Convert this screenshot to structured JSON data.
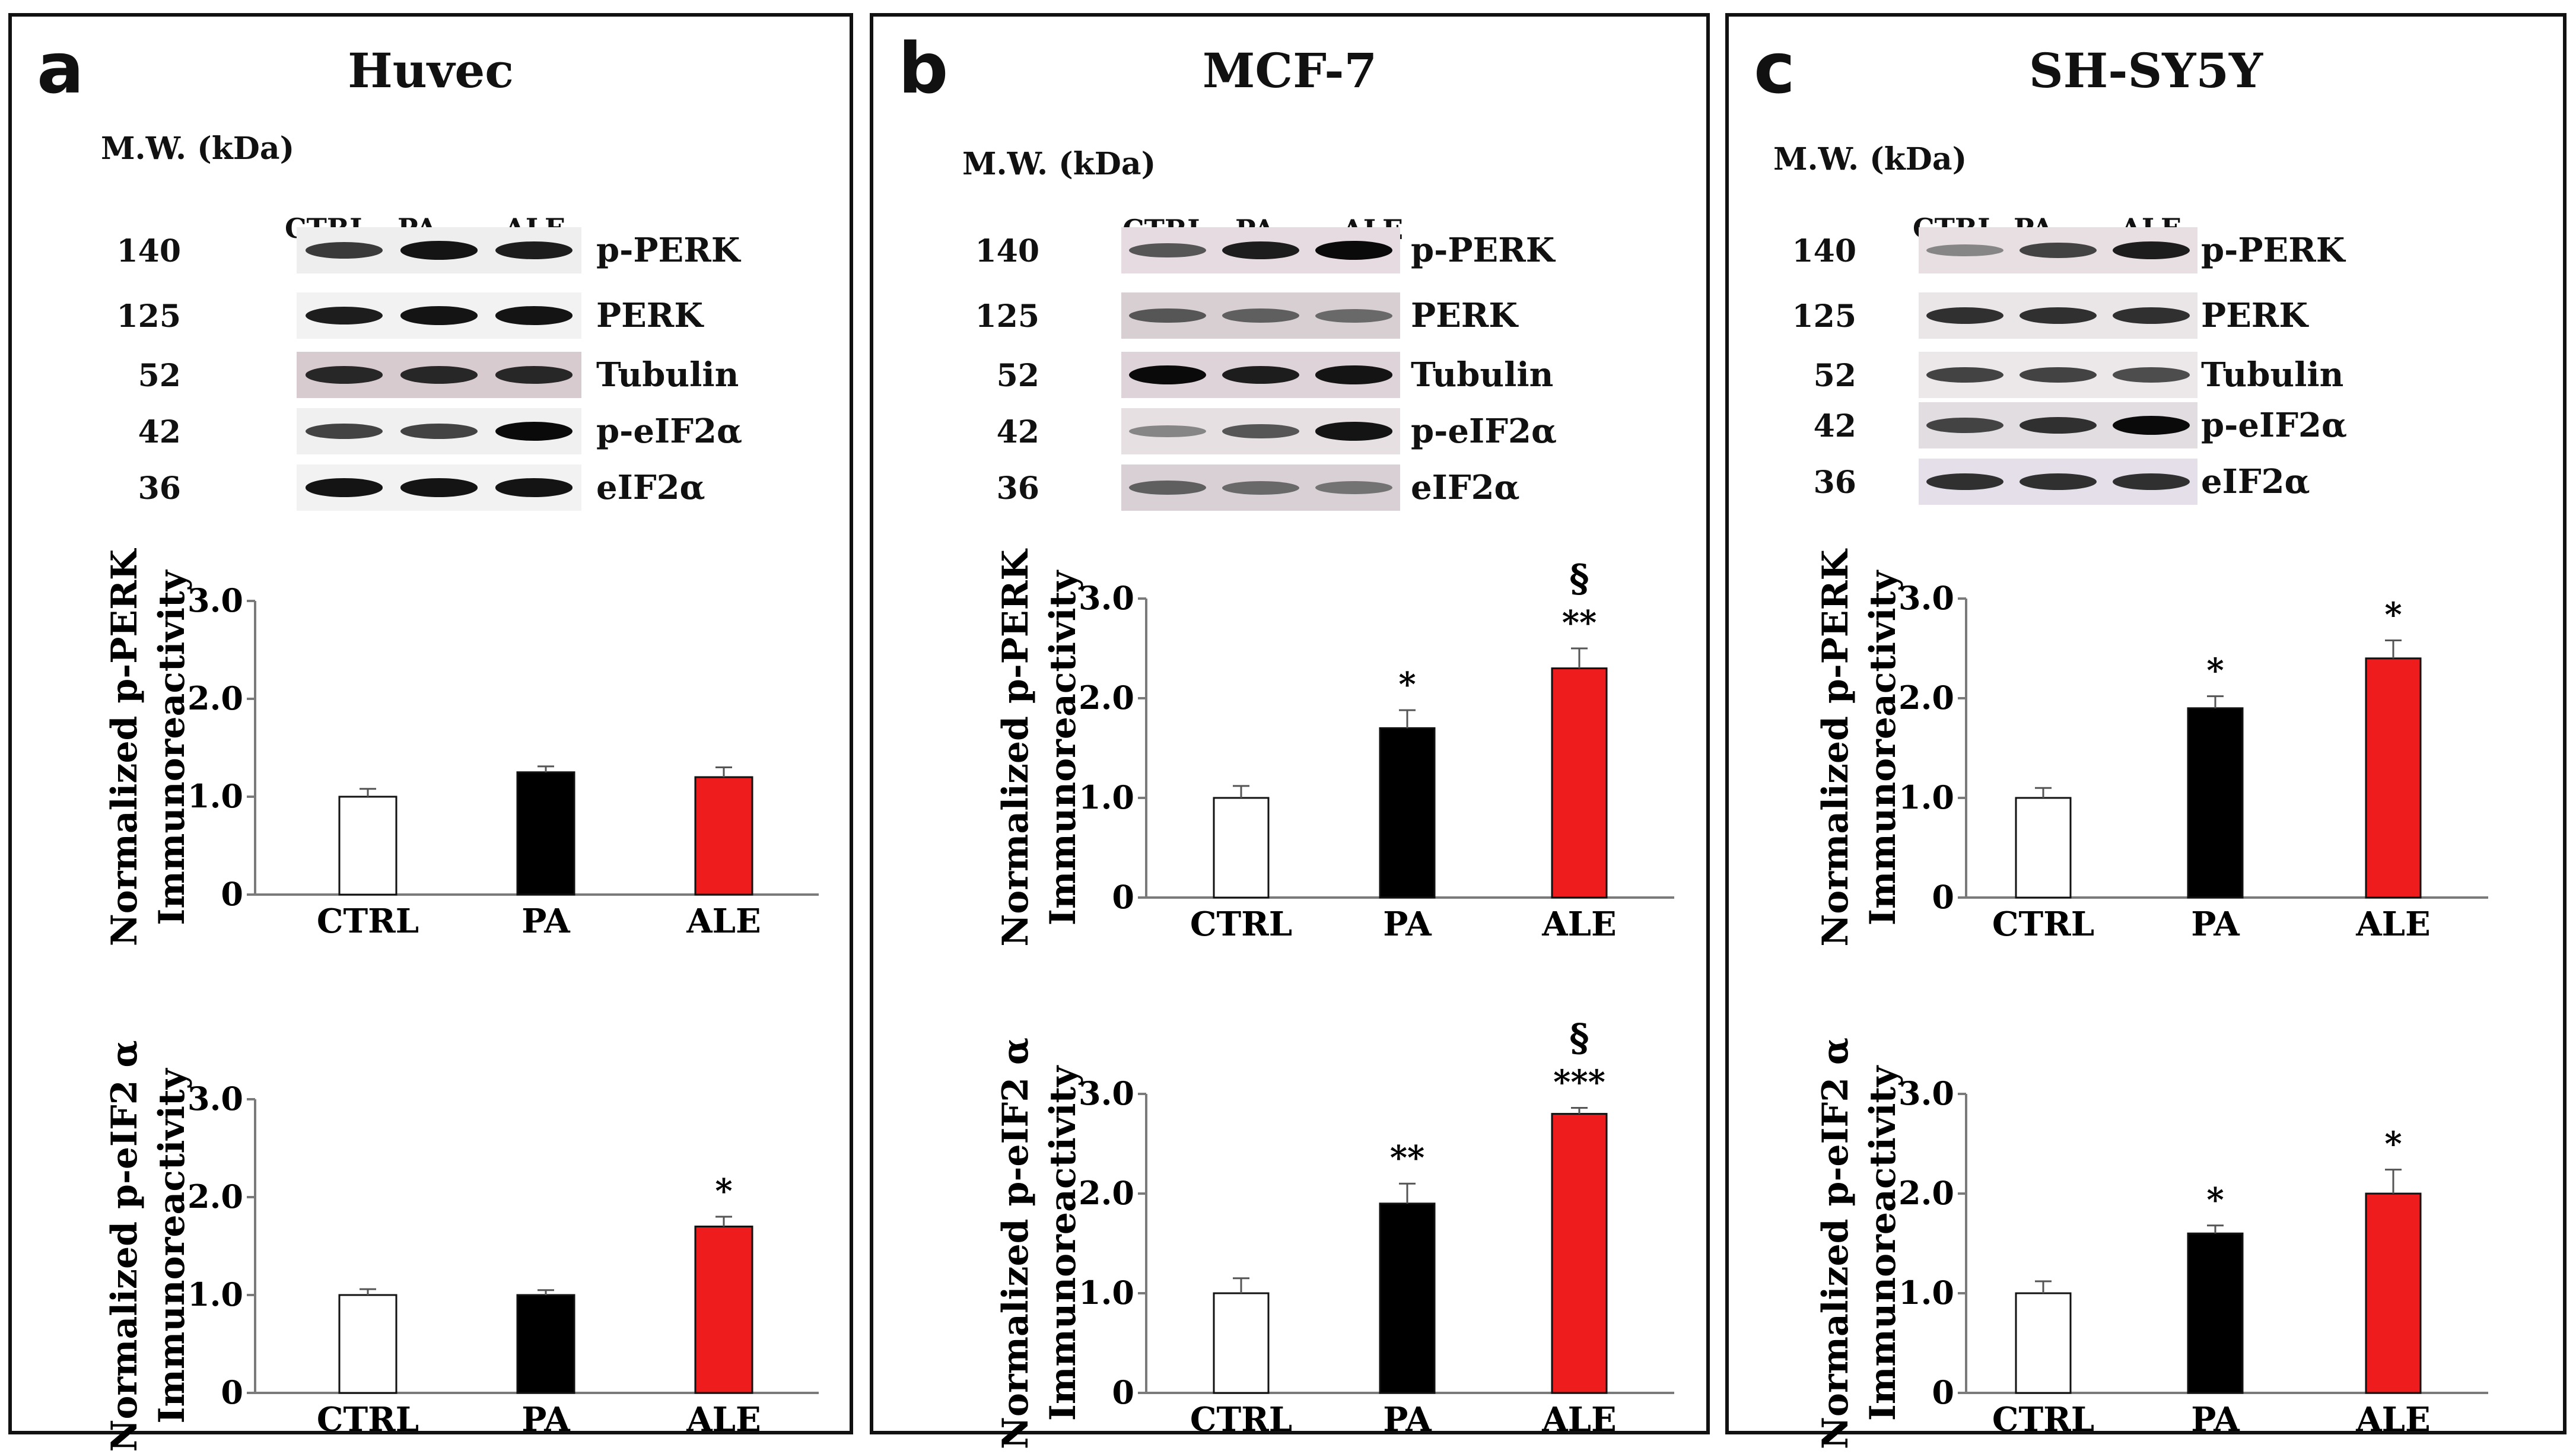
{
  "colors": {
    "ctrl": "#ffffff",
    "pa": "#000000",
    "ale": "#ee1c1c",
    "axis": "#7a7a7a"
  },
  "panels": [
    {
      "label": "a",
      "title": "Huvec",
      "blot": {
        "mw_label": "M.W. (kDa)",
        "lanes": [
          "CTRL",
          "PA",
          "ALE"
        ],
        "rows": [
          {
            "kda": "140",
            "protein": "p-PERK",
            "intensity": [
              0.75,
              0.95,
              0.9
            ]
          },
          {
            "kda": "125",
            "protein": "PERK",
            "intensity": [
              0.9,
              0.95,
              0.95
            ]
          },
          {
            "kda": "52",
            "protein": "Tubulin",
            "intensity": [
              0.85,
              0.85,
              0.85
            ]
          },
          {
            "kda": "42",
            "protein": "p-eIF2α",
            "intensity": [
              0.7,
              0.7,
              1.0
            ]
          },
          {
            "kda": "36",
            "protein": "eIF2α",
            "intensity": [
              0.95,
              0.95,
              0.95
            ]
          }
        ]
      }
    },
    {
      "label": "b",
      "title": "MCF-7",
      "blot": {
        "mw_label": "M.W. (kDa)",
        "lanes": [
          "CTRL",
          "PA",
          "ALE"
        ],
        "rows": [
          {
            "kda": "140",
            "protein": "p-PERK",
            "intensity": [
              0.6,
              0.9,
              1.0
            ]
          },
          {
            "kda": "125",
            "protein": "PERK",
            "intensity": [
              0.6,
              0.55,
              0.5
            ]
          },
          {
            "kda": "52",
            "protein": "Tubulin",
            "intensity": [
              1.0,
              0.9,
              0.95
            ]
          },
          {
            "kda": "42",
            "protein": "p-eIF2α",
            "intensity": [
              0.35,
              0.6,
              0.95
            ]
          },
          {
            "kda": "36",
            "protein": "eIF2α",
            "intensity": [
              0.55,
              0.5,
              0.45
            ]
          }
        ]
      }
    },
    {
      "label": "c",
      "title": "SH-SY5Y",
      "blot": {
        "mw_label": "M.W. (kDa)",
        "lanes": [
          "CTRL",
          "PA",
          "ALE"
        ],
        "rows": [
          {
            "kda": "140",
            "protein": "p-PERK",
            "intensity": [
              0.35,
              0.7,
              0.9
            ]
          },
          {
            "kda": "125",
            "protein": "PERK",
            "intensity": [
              0.8,
              0.8,
              0.8
            ]
          },
          {
            "kda": "52",
            "protein": "Tubulin",
            "intensity": [
              0.7,
              0.7,
              0.65
            ]
          },
          {
            "kda": "42",
            "protein": "p-eIF2α",
            "intensity": [
              0.7,
              0.8,
              1.0
            ]
          },
          {
            "kda": "36",
            "protein": "eIF2α",
            "intensity": [
              0.8,
              0.8,
              0.8
            ]
          }
        ]
      }
    }
  ],
  "chart_data": [
    {
      "panel": "a",
      "type": "bar",
      "title": "",
      "ylabel": [
        "Normalized p-PERK",
        "Immunoreactivity"
      ],
      "categories": [
        "CTRL",
        "PA",
        "ALE"
      ],
      "values": [
        1.0,
        1.25,
        1.2
      ],
      "errors": [
        0.08,
        0.06,
        0.1
      ],
      "annotations": [
        "",
        "",
        ""
      ],
      "ylim": [
        0,
        3.0
      ],
      "yticks": [
        "0",
        "1.0",
        "2.0",
        "3.0"
      ]
    },
    {
      "panel": "a",
      "type": "bar",
      "title": "",
      "ylabel": [
        "Normalized p-eIF2 α",
        "Immunoreactivity"
      ],
      "categories": [
        "CTRL",
        "PA",
        "ALE"
      ],
      "values": [
        1.0,
        1.0,
        1.7
      ],
      "errors": [
        0.06,
        0.05,
        0.1
      ],
      "annotations": [
        "",
        "",
        "*"
      ],
      "ylim": [
        0,
        3.0
      ],
      "yticks": [
        "0",
        "1.0",
        "2.0",
        "3.0"
      ]
    },
    {
      "panel": "b",
      "type": "bar",
      "title": "",
      "ylabel": [
        "Normalized p-PERK",
        "Immunoreactivity"
      ],
      "categories": [
        "CTRL",
        "PA",
        "ALE"
      ],
      "values": [
        1.0,
        1.7,
        2.3
      ],
      "errors": [
        0.12,
        0.18,
        0.2
      ],
      "annotations": [
        "",
        "*",
        "**\n§"
      ],
      "ylim": [
        0,
        3.0
      ],
      "yticks": [
        "0",
        "1.0",
        "2.0",
        "3.0"
      ]
    },
    {
      "panel": "b",
      "type": "bar",
      "title": "",
      "ylabel": [
        "Normalized p-eIF2 α",
        "Immunoreactivity"
      ],
      "categories": [
        "CTRL",
        "PA",
        "ALE"
      ],
      "values": [
        1.0,
        1.9,
        2.8
      ],
      "errors": [
        0.15,
        0.2,
        0.06
      ],
      "annotations": [
        "",
        "**",
        "***\n§"
      ],
      "ylim": [
        0,
        3.0
      ],
      "yticks": [
        "0",
        "1.0",
        "2.0",
        "3.0"
      ]
    },
    {
      "panel": "c",
      "type": "bar",
      "title": "",
      "ylabel": [
        "Normalized p-PERK",
        "Immunoreactivity"
      ],
      "categories": [
        "CTRL",
        "PA",
        "ALE"
      ],
      "values": [
        1.0,
        1.9,
        2.4
      ],
      "errors": [
        0.1,
        0.12,
        0.18
      ],
      "annotations": [
        "",
        "*",
        "*"
      ],
      "ylim": [
        0,
        3.0
      ],
      "yticks": [
        "0",
        "1.0",
        "2.0",
        "3.0"
      ]
    },
    {
      "panel": "c",
      "type": "bar",
      "title": "",
      "ylabel": [
        "Normalized p-eIF2 α",
        "Immunoreactivity"
      ],
      "categories": [
        "CTRL",
        "PA",
        "ALE"
      ],
      "values": [
        1.0,
        1.6,
        2.0
      ],
      "errors": [
        0.12,
        0.08,
        0.24
      ],
      "annotations": [
        "",
        "*",
        "*"
      ],
      "ylim": [
        0,
        3.0
      ],
      "yticks": [
        "0",
        "1.0",
        "2.0",
        "3.0"
      ]
    }
  ]
}
